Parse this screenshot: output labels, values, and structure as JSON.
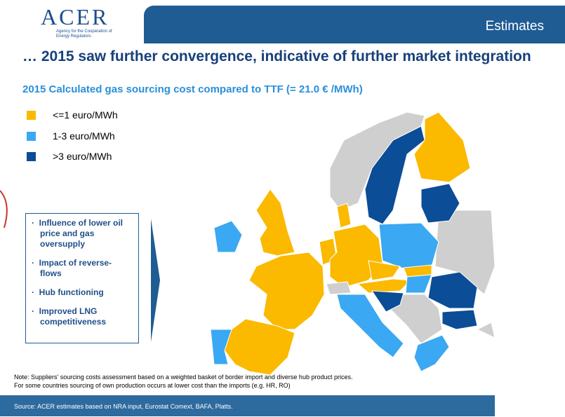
{
  "header": {
    "logo": "ACER",
    "logo_subtitle": "Agency for the Cooperation of Energy Regulators",
    "section": "Estimates"
  },
  "title": "… 2015 saw further convergence, indicative  of further market integration",
  "subtitle": "2015 Calculated gas sourcing  cost compared to TTF (= 21.0 € /MWh)",
  "legend": [
    {
      "label": "<=1  euro/MWh",
      "color": "#fbb900"
    },
    {
      "label": "1-3 euro/MWh",
      "color": "#3aa8f2"
    },
    {
      "label": ">3 euro/MWh",
      "color": "#0b4d96"
    }
  ],
  "bullets": [
    "Influence of lower oil price and gas oversupply",
    "Impact of reverse-flows",
    "Hub functioning",
    "Improved LNG competitiveness"
  ],
  "notes": [
    "Note: Suppliers' sourcing  costs assessment  based on a weighted basket of border import and diverse hub product prices.",
    "For some countries sourcing  of own production  occurs at lower cost than the imports  (e.g. HR, RO)"
  ],
  "source": "Source:  ACER estimates based on NRA input, Eurostat Comext, BAFA, Platts."
}
